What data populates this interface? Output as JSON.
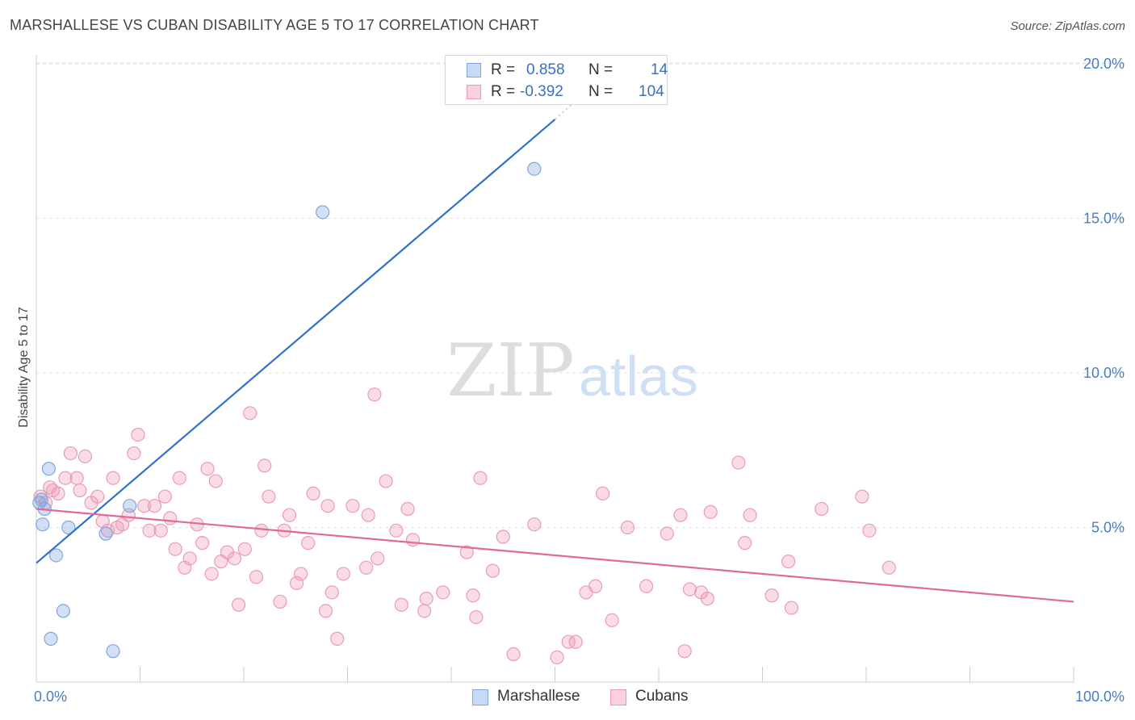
{
  "header": {
    "title": "MARSHALLESE VS CUBAN DISABILITY AGE 5 TO 17 CORRELATION CHART",
    "source": "Source: ZipAtlas.com"
  },
  "watermark": {
    "zip": "ZIP",
    "atlas": "atlas"
  },
  "legend": {
    "rows": [
      {
        "r_label": "R =",
        "r_value": "0.858",
        "n_label": "N =",
        "n_value": "14",
        "swatch_fill": "#c6d9f5",
        "swatch_stroke": "#7fa6e0"
      },
      {
        "r_label": "R =",
        "r_value": "-0.392",
        "n_label": "N =",
        "n_value": "104",
        "swatch_fill": "#fbd0dd",
        "swatch_stroke": "#ee9ab4"
      }
    ]
  },
  "bottom_legend": [
    {
      "label": "Marshallese",
      "fill": "#c6d9f5",
      "stroke": "#7fa6e0"
    },
    {
      "label": "Cubans",
      "fill": "#fbd0dd",
      "stroke": "#ee9ab4"
    }
  ],
  "chart_data": {
    "type": "scatter",
    "title": "MARSHALLESE VS CUBAN DISABILITY AGE 5 TO 17 CORRELATION CHART",
    "xlabel": "",
    "ylabel": "Disability Age 5 to 17",
    "xlim": [
      0,
      100
    ],
    "ylim": [
      0,
      20.5
    ],
    "x_tick_labels": [
      {
        "value": 0,
        "label": "0.0%"
      },
      {
        "value": 100,
        "label": "100.0%"
      }
    ],
    "y_tick_labels": [
      {
        "value": 5,
        "label": "5.0%"
      },
      {
        "value": 10,
        "label": "10.0%"
      },
      {
        "value": 15,
        "label": "15.0%"
      },
      {
        "value": 20,
        "label": "20.0%"
      }
    ],
    "x_minor_ticks": [
      10,
      20,
      30,
      40,
      50,
      60,
      70,
      80,
      90,
      100
    ],
    "grid": "horizontal-dashed",
    "legend_position": "top-center",
    "colors": {
      "marshallese": "#7fa6e0",
      "marshallese_line": "#2f72cc",
      "cubans": "#ee9ab4",
      "cubans_line": "#e0689a"
    },
    "series": [
      {
        "name": "Marshallese",
        "trend": {
          "x": [
            0,
            50
          ],
          "y": [
            3.85,
            18.2
          ],
          "dashed_extension_to": [
            53,
            19.1
          ]
        },
        "points": [
          [
            0.5,
            5.9
          ],
          [
            0.8,
            5.6
          ],
          [
            1.2,
            6.9
          ],
          [
            0.6,
            5.1
          ],
          [
            1.9,
            4.1
          ],
          [
            2.6,
            2.3
          ],
          [
            3.1,
            5.0
          ],
          [
            1.4,
            1.4
          ],
          [
            6.7,
            4.8
          ],
          [
            7.4,
            1.0
          ],
          [
            9.0,
            5.7
          ],
          [
            27.6,
            15.2
          ],
          [
            48.0,
            16.6
          ],
          [
            0.3,
            5.8
          ]
        ]
      },
      {
        "name": "Cubans",
        "trend": {
          "x": [
            0,
            100
          ],
          "y": [
            5.6,
            2.6
          ]
        },
        "points": [
          [
            0.4,
            6.0
          ],
          [
            0.9,
            5.8
          ],
          [
            1.3,
            6.3
          ],
          [
            1.6,
            6.2
          ],
          [
            2.1,
            6.1
          ],
          [
            2.8,
            6.6
          ],
          [
            3.3,
            7.4
          ],
          [
            3.9,
            6.6
          ],
          [
            4.2,
            6.2
          ],
          [
            4.7,
            7.3
          ],
          [
            5.3,
            5.8
          ],
          [
            5.9,
            6.0
          ],
          [
            6.4,
            5.2
          ],
          [
            6.9,
            4.9
          ],
          [
            7.4,
            6.6
          ],
          [
            7.8,
            5.0
          ],
          [
            8.3,
            5.1
          ],
          [
            8.9,
            5.4
          ],
          [
            9.4,
            7.4
          ],
          [
            9.8,
            8.0
          ],
          [
            10.4,
            5.7
          ],
          [
            10.9,
            4.9
          ],
          [
            11.4,
            5.7
          ],
          [
            12.0,
            4.9
          ],
          [
            12.4,
            6.0
          ],
          [
            12.9,
            5.3
          ],
          [
            13.4,
            4.3
          ],
          [
            13.8,
            6.6
          ],
          [
            14.3,
            3.7
          ],
          [
            14.8,
            4.0
          ],
          [
            15.5,
            5.1
          ],
          [
            16.0,
            4.5
          ],
          [
            16.5,
            6.9
          ],
          [
            16.9,
            3.5
          ],
          [
            17.3,
            6.5
          ],
          [
            17.8,
            3.9
          ],
          [
            18.4,
            4.2
          ],
          [
            19.1,
            4.0
          ],
          [
            19.5,
            2.5
          ],
          [
            20.1,
            4.3
          ],
          [
            20.6,
            8.7
          ],
          [
            21.2,
            3.4
          ],
          [
            21.7,
            4.9
          ],
          [
            22.0,
            7.0
          ],
          [
            22.4,
            6.0
          ],
          [
            23.5,
            2.6
          ],
          [
            23.9,
            4.9
          ],
          [
            24.4,
            5.4
          ],
          [
            25.1,
            3.2
          ],
          [
            25.5,
            3.5
          ],
          [
            26.2,
            4.5
          ],
          [
            26.7,
            6.1
          ],
          [
            27.9,
            2.3
          ],
          [
            28.1,
            5.7
          ],
          [
            28.5,
            2.9
          ],
          [
            29.0,
            1.4
          ],
          [
            29.6,
            3.5
          ],
          [
            30.5,
            5.7
          ],
          [
            31.8,
            3.7
          ],
          [
            32.0,
            5.4
          ],
          [
            32.6,
            9.3
          ],
          [
            32.9,
            4.0
          ],
          [
            33.7,
            6.5
          ],
          [
            34.7,
            4.9
          ],
          [
            35.2,
            2.5
          ],
          [
            35.8,
            5.6
          ],
          [
            36.3,
            4.6
          ],
          [
            37.4,
            2.3
          ],
          [
            37.6,
            2.7
          ],
          [
            39.2,
            2.9
          ],
          [
            41.5,
            4.2
          ],
          [
            42.1,
            2.8
          ],
          [
            42.4,
            2.1
          ],
          [
            42.8,
            6.6
          ],
          [
            44.0,
            3.6
          ],
          [
            45.0,
            4.7
          ],
          [
            46.0,
            0.9
          ],
          [
            48.0,
            5.1
          ],
          [
            50.2,
            0.8
          ],
          [
            51.3,
            1.3
          ],
          [
            52.0,
            1.3
          ],
          [
            53.0,
            2.9
          ],
          [
            53.9,
            3.1
          ],
          [
            54.6,
            6.1
          ],
          [
            55.5,
            2.0
          ],
          [
            57.0,
            5.0
          ],
          [
            58.8,
            3.1
          ],
          [
            60.8,
            4.8
          ],
          [
            62.1,
            5.4
          ],
          [
            62.5,
            1.0
          ],
          [
            63.0,
            3.0
          ],
          [
            64.1,
            2.9
          ],
          [
            64.7,
            2.7
          ],
          [
            65.0,
            5.5
          ],
          [
            67.7,
            7.1
          ],
          [
            68.3,
            4.5
          ],
          [
            68.8,
            5.4
          ],
          [
            70.9,
            2.8
          ],
          [
            72.5,
            3.9
          ],
          [
            72.8,
            2.4
          ],
          [
            75.7,
            5.6
          ],
          [
            79.6,
            6.0
          ],
          [
            80.3,
            4.9
          ],
          [
            82.2,
            3.7
          ]
        ]
      }
    ]
  }
}
